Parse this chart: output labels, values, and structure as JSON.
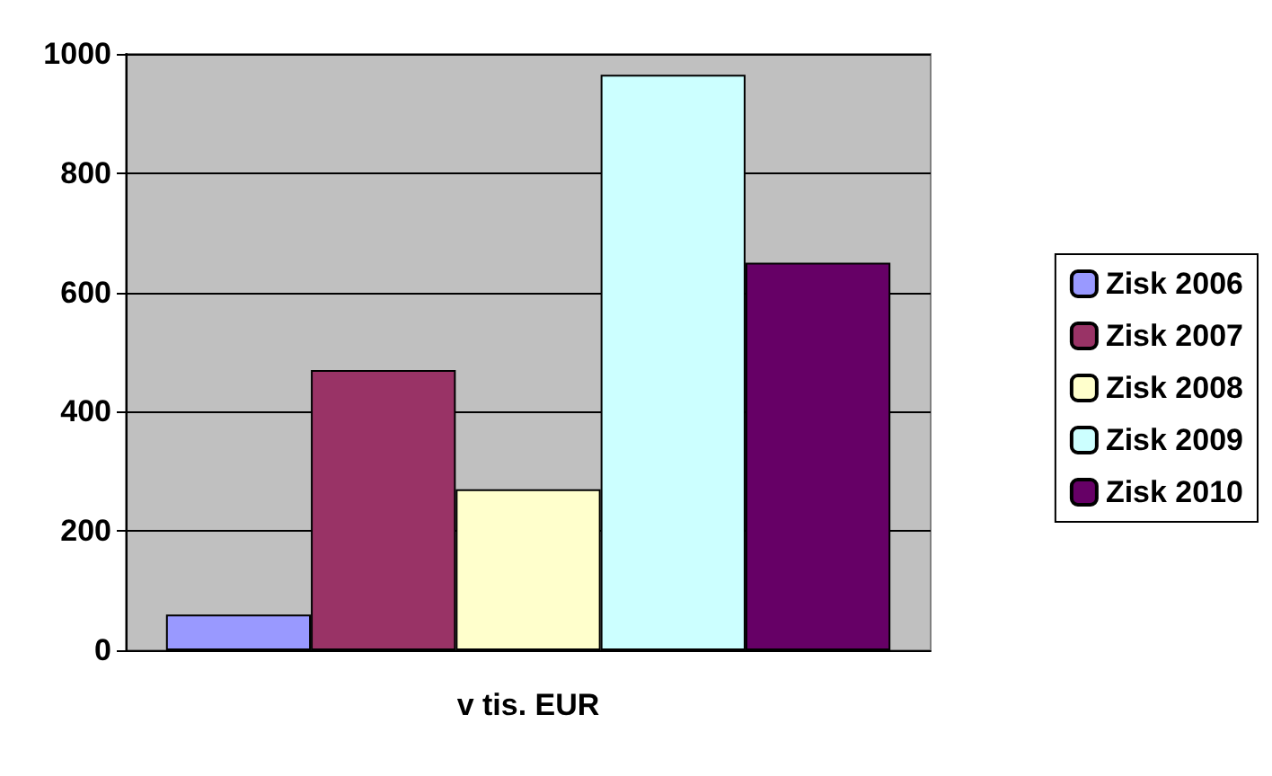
{
  "chart_data": {
    "type": "bar",
    "categories": [
      "v tis. EUR"
    ],
    "series": [
      {
        "name": "Zisk 2006",
        "color": "#9999ff",
        "values": [
          60
        ]
      },
      {
        "name": "Zisk 2007",
        "color": "#993366",
        "values": [
          470
        ]
      },
      {
        "name": "Zisk 2008",
        "color": "#ffffcc",
        "values": [
          270
        ]
      },
      {
        "name": "Zisk 2009",
        "color": "#ccffff",
        "values": [
          965
        ]
      },
      {
        "name": "Zisk 2010",
        "color": "#660066",
        "values": [
          650
        ]
      }
    ],
    "ylim": [
      0,
      1000
    ],
    "yticks": [
      0,
      200,
      400,
      600,
      800,
      1000
    ],
    "grid": "y",
    "legend": "right"
  }
}
